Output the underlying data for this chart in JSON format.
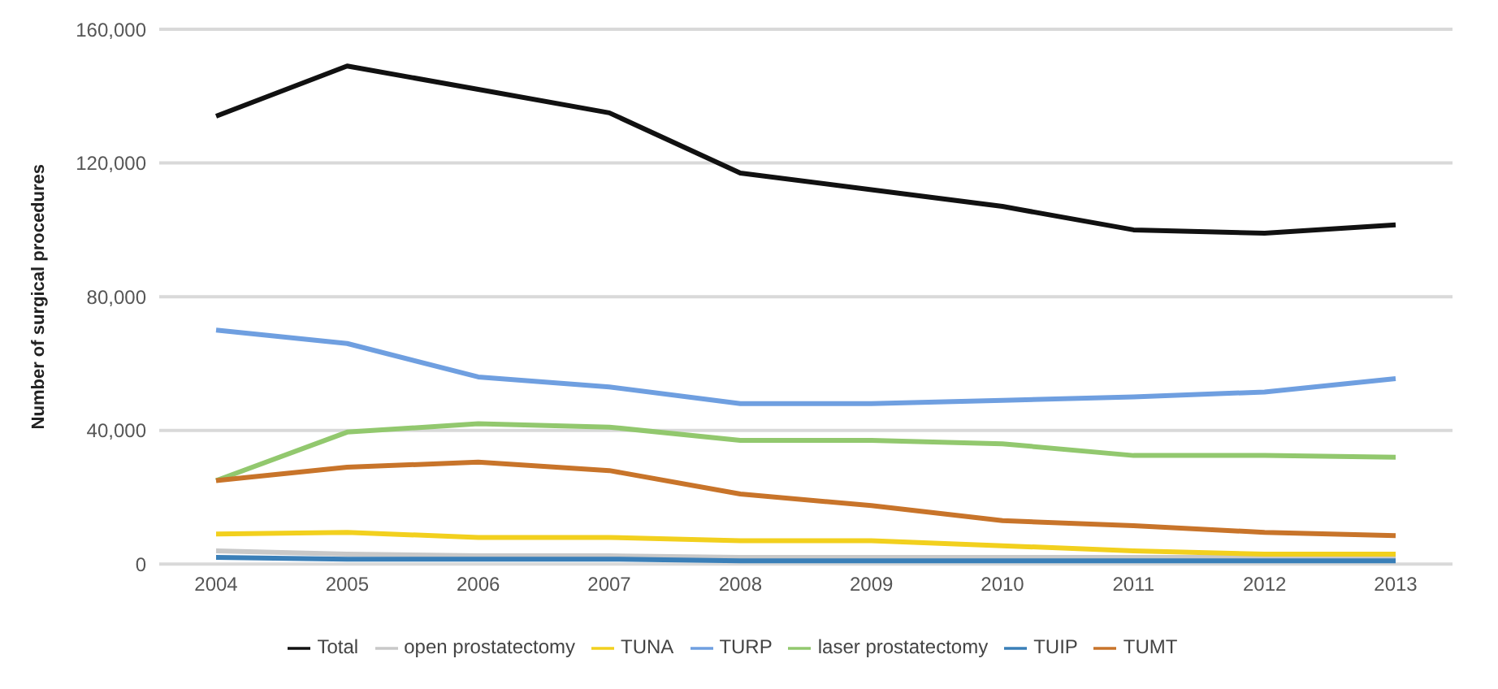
{
  "chart_data": {
    "type": "line",
    "ylabel": "Number of surgical procedures",
    "categories": [
      "2004",
      "2005",
      "2006",
      "2007",
      "2008",
      "2009",
      "2010",
      "2011",
      "2012",
      "2013"
    ],
    "series": [
      {
        "name": "Total",
        "color": "#111111",
        "values": [
          134000,
          149000,
          142000,
          135000,
          117000,
          112000,
          107000,
          100000,
          99000,
          101500
        ]
      },
      {
        "name": "open prostatectomy",
        "color": "#c8c8c8",
        "values": [
          4000,
          3000,
          2500,
          2500,
          2000,
          2000,
          2000,
          2000,
          2000,
          2000
        ]
      },
      {
        "name": "TUNA",
        "color": "#f2d01e",
        "values": [
          9000,
          9500,
          8000,
          8000,
          7000,
          7000,
          5500,
          4000,
          3000,
          3000
        ]
      },
      {
        "name": "TURP",
        "color": "#6f9fe0",
        "values": [
          70000,
          66000,
          56000,
          53000,
          48000,
          48000,
          49000,
          50000,
          51500,
          55500
        ]
      },
      {
        "name": "laser prostatectomy",
        "color": "#92c86e",
        "values": [
          25000,
          39500,
          42000,
          41000,
          37000,
          37000,
          36000,
          32500,
          32500,
          32000
        ]
      },
      {
        "name": "TUIP",
        "color": "#3a7fb8",
        "values": [
          2000,
          1500,
          1500,
          1500,
          1000,
          1000,
          1000,
          1000,
          1000,
          1000
        ]
      },
      {
        "name": "TUMT",
        "color": "#c8742a",
        "values": [
          25000,
          29000,
          30500,
          28000,
          21000,
          17500,
          13000,
          11500,
          9500,
          8500
        ]
      }
    ],
    "ylim": [
      0,
      160000
    ],
    "yticks": [
      {
        "value": 0,
        "label": "0"
      },
      {
        "value": 40000,
        "label": "40,000"
      },
      {
        "value": 80000,
        "label": "80,000"
      },
      {
        "value": 120000,
        "label": "120,000"
      },
      {
        "value": 160000,
        "label": "160,000"
      }
    ],
    "grid": "y",
    "legend": "bottom",
    "marker": "none",
    "line_style": "solid"
  }
}
